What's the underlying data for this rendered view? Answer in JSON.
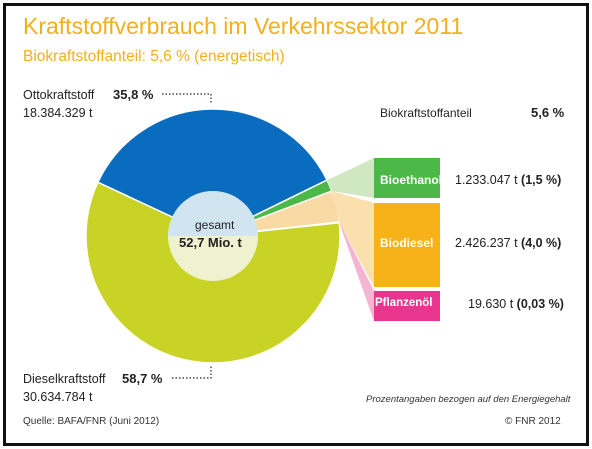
{
  "header": {
    "title": "Kraftstoffverbrauch im Verkehrssektor 2011",
    "subtitle": "Biokraftstoffanteil: 5,6 % (energetisch)"
  },
  "colors": {
    "title": "#f2b01e",
    "otto": "#0a6cbf",
    "diesel": "#c9d325",
    "bio_wedge": "#f9d9a4",
    "bioethanol": "#4cb848",
    "biodiesel": "#f7b21a",
    "pflanzenoel": "#e8368f",
    "center": "#eef2cf"
  },
  "chart_data": {
    "type": "pie",
    "title": "Kraftstoffverbrauch im Verkehrssektor 2011",
    "subtitle": "Biokraftstoffanteil: 5,6 % (energetisch)",
    "center_label": "gesamt",
    "center_value": "52,7 Mio. t",
    "slices": [
      {
        "name": "Ottokraftstoff",
        "percent": 35.8,
        "percent_label": "35,8 %",
        "amount": "18.384.329 t",
        "color": "#0a6cbf"
      },
      {
        "name": "Biokraftstoffanteil",
        "percent": 5.6,
        "percent_label": "5,6 %",
        "color": "#f9d9a4"
      },
      {
        "name": "Dieselkraftstoff",
        "percent": 58.7,
        "percent_label": "58,7 %",
        "amount": "30.634.784 t",
        "color": "#c9d325"
      }
    ],
    "breakdown": {
      "label": "Biokraftstoffanteil",
      "value": "5,6 %",
      "items": [
        {
          "name": "Bioethanol",
          "percent": 1.5,
          "amount": "1.233.047 t",
          "percent_label": "(1,5 %)",
          "color": "#4cb848"
        },
        {
          "name": "Biodiesel",
          "percent": 4.0,
          "amount": "2.426.237 t",
          "percent_label": "(4,0 %)",
          "color": "#f7b21a"
        },
        {
          "name": "Pflanzenöl",
          "percent": 0.03,
          "amount": "19.630 t",
          "percent_label": "(0,03 %)",
          "color": "#e8368f"
        }
      ]
    }
  },
  "footer": {
    "note": "Prozentangaben bezogen auf den Energiegehalt",
    "source": "Quelle: BAFA/FNR (Juni 2012)",
    "copyright": "© FNR 2012"
  }
}
